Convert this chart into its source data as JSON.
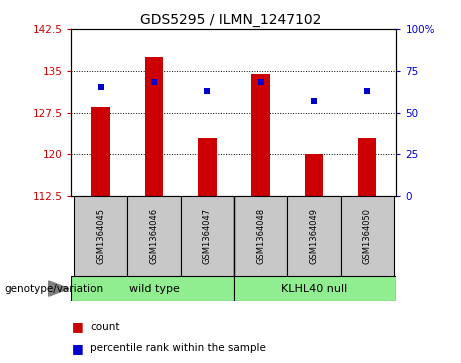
{
  "title": "GDS5295 / ILMN_1247102",
  "samples": [
    "GSM1364045",
    "GSM1364046",
    "GSM1364047",
    "GSM1364048",
    "GSM1364049",
    "GSM1364050"
  ],
  "bar_bottom": 112.5,
  "count_values": [
    128.5,
    137.5,
    123.0,
    134.5,
    120.0,
    123.0
  ],
  "percentile_values": [
    65,
    68,
    63,
    68,
    57,
    63
  ],
  "ylim_left": [
    112.5,
    142.5
  ],
  "ylim_right": [
    0,
    100
  ],
  "yticks_left": [
    112.5,
    120.0,
    127.5,
    135.0,
    142.5
  ],
  "ytick_labels_left": [
    "112.5",
    "120",
    "127.5",
    "135",
    "142.5"
  ],
  "yticks_right": [
    0,
    25,
    50,
    75,
    100
  ],
  "ytick_labels_right": [
    "0",
    "25",
    "50",
    "75",
    "100%"
  ],
  "bar_color": "#CC0000",
  "dot_color": "#0000CC",
  "label_color_left": "#CC0000",
  "label_color_right": "#0000CC",
  "legend_count": "count",
  "legend_pct": "percentile rank within the sample",
  "genotype_label": "genotype/variation",
  "bar_width": 0.35,
  "sample_box_color": "#C8C8C8",
  "group_box_color": "#90EE90",
  "wild_type_label": "wild type",
  "klhl40_label": "KLHL40 null"
}
